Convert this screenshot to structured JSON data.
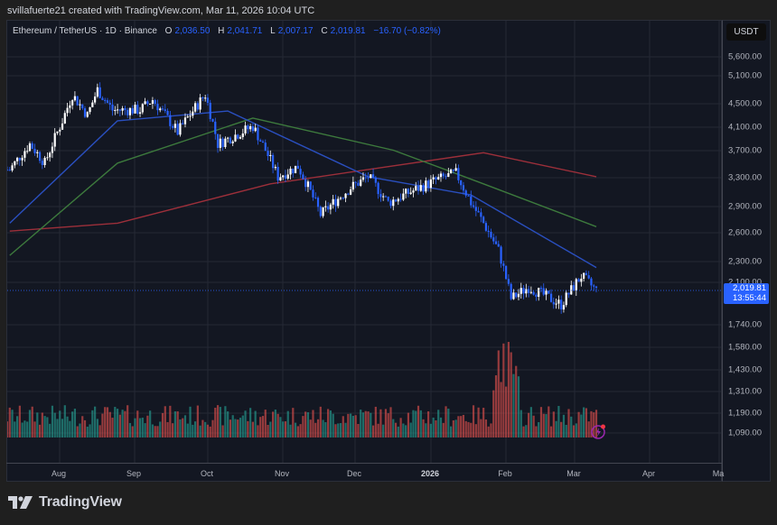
{
  "attribution": "svillafuerte21 created with TradingView.com, Mar 11, 2026 10:04 UTC",
  "legend": {
    "symbol": "Ethereum / TetherUS · 1D · Binance",
    "open_label": "O",
    "open": "2,036.50",
    "high_label": "H",
    "high": "2,041.71",
    "low_label": "L",
    "low": "2,007.17",
    "close_label": "C",
    "close": "2,019.81",
    "change": "−16.70 (−0.82%)"
  },
  "price_axis": {
    "currency": "USDT",
    "ticks": [
      "5,600.00",
      "5,100.00",
      "4,500.00",
      "4,100.00",
      "3,700.00",
      "3,300.00",
      "2,900.00",
      "2,600.00",
      "2,300.00",
      "2,100.00",
      "1,740.00",
      "1,580.00",
      "1,430.00",
      "1,310.00",
      "1,190.00",
      "1,090.00"
    ],
    "last_price": "2,019.81",
    "countdown": "13:55:44"
  },
  "time_axis": {
    "labels": [
      "Aug",
      "Sep",
      "Oct",
      "Nov",
      "Dec",
      "2026",
      "Feb",
      "Mar",
      "Apr",
      "Ma"
    ]
  },
  "brand": {
    "name": "TradingView"
  },
  "colors": {
    "background": "#131722",
    "up_candle": "#ffffff",
    "down_candle": "#2962ff",
    "ma_fast": "#2a4fbf",
    "ma_mid": "#3d7a3d",
    "ma_slow": "#9c2f3a",
    "volume_up": "#26a69a",
    "volume_down": "#ef5350",
    "last_price_badge": "#2962ff"
  },
  "chart_data": {
    "type": "candlestick",
    "title": "Ethereum / TetherUS · 1D · Binance",
    "xlabel": "",
    "ylabel": "USDT",
    "y_scale": "log",
    "ylim": [
      1050,
      5900
    ],
    "x_ticks": [
      "Aug",
      "Sep",
      "Oct",
      "Nov",
      "Dec",
      "2026",
      "Feb",
      "Mar",
      "Apr",
      "Ma"
    ],
    "y_ticks": [
      5600,
      5100,
      4500,
      4100,
      3700,
      3300,
      2900,
      2600,
      2300,
      2100,
      1740,
      1580,
      1430,
      1310,
      1190,
      1090
    ],
    "approx_close_path": [
      {
        "date": "2025-07-20",
        "close": 3400
      },
      {
        "date": "2025-07-28",
        "close": 3800
      },
      {
        "date": "2025-08-03",
        "close": 3500
      },
      {
        "date": "2025-08-10",
        "close": 4200
      },
      {
        "date": "2025-08-14",
        "close": 4700
      },
      {
        "date": "2025-08-20",
        "close": 4300
      },
      {
        "date": "2025-08-24",
        "close": 4800
      },
      {
        "date": "2025-08-30",
        "close": 4400
      },
      {
        "date": "2025-09-10",
        "close": 4400
      },
      {
        "date": "2025-09-15",
        "close": 4600
      },
      {
        "date": "2025-09-25",
        "close": 4000
      },
      {
        "date": "2025-10-06",
        "close": 4700
      },
      {
        "date": "2025-10-11",
        "close": 3800
      },
      {
        "date": "2025-10-25",
        "close": 4100
      },
      {
        "date": "2025-11-04",
        "close": 3300
      },
      {
        "date": "2025-11-12",
        "close": 3450
      },
      {
        "date": "2025-11-21",
        "close": 2800
      },
      {
        "date": "2025-12-03",
        "close": 3150
      },
      {
        "date": "2025-12-10",
        "close": 3300
      },
      {
        "date": "2025-12-18",
        "close": 2950
      },
      {
        "date": "2026-01-06",
        "close": 3250
      },
      {
        "date": "2026-01-14",
        "close": 3350
      },
      {
        "date": "2026-01-20",
        "close": 2950
      },
      {
        "date": "2026-01-31",
        "close": 2400
      },
      {
        "date": "2026-02-05",
        "close": 1950
      },
      {
        "date": "2026-02-12",
        "close": 2050
      },
      {
        "date": "2026-02-25",
        "close": 1900
      },
      {
        "date": "2026-03-05",
        "close": 2150
      },
      {
        "date": "2026-03-11",
        "close": 2019.81
      }
    ],
    "last": {
      "open": 2036.5,
      "high": 2041.71,
      "low": 2007.17,
      "close": 2019.81,
      "change": -16.7,
      "change_pct": -0.82
    },
    "series": [
      {
        "name": "MA (fast, blue)",
        "values_approx": [
          {
            "date": "2025-07-20",
            "v": 2700
          },
          {
            "date": "2025-09-01",
            "v": 4200
          },
          {
            "date": "2025-10-15",
            "v": 4380
          },
          {
            "date": "2025-12-10",
            "v": 3300
          },
          {
            "date": "2026-01-20",
            "v": 3050
          },
          {
            "date": "2026-03-11",
            "v": 2230
          }
        ]
      },
      {
        "name": "MA (mid, green)",
        "values_approx": [
          {
            "date": "2025-07-20",
            "v": 2350
          },
          {
            "date": "2025-09-01",
            "v": 3500
          },
          {
            "date": "2025-10-25",
            "v": 4250
          },
          {
            "date": "2025-12-20",
            "v": 3700
          },
          {
            "date": "2026-01-25",
            "v": 3200
          },
          {
            "date": "2026-03-11",
            "v": 2660
          }
        ]
      },
      {
        "name": "MA (slow, red)",
        "values_approx": [
          {
            "date": "2025-07-20",
            "v": 2610
          },
          {
            "date": "2025-09-01",
            "v": 2700
          },
          {
            "date": "2025-11-01",
            "v": 3200
          },
          {
            "date": "2026-01-25",
            "v": 3660
          },
          {
            "date": "2026-03-11",
            "v": 3300
          }
        ]
      }
    ],
    "volume": {
      "note": "histogram at bottom, teal=up, red=down; spike around early Feb 2026"
    }
  }
}
